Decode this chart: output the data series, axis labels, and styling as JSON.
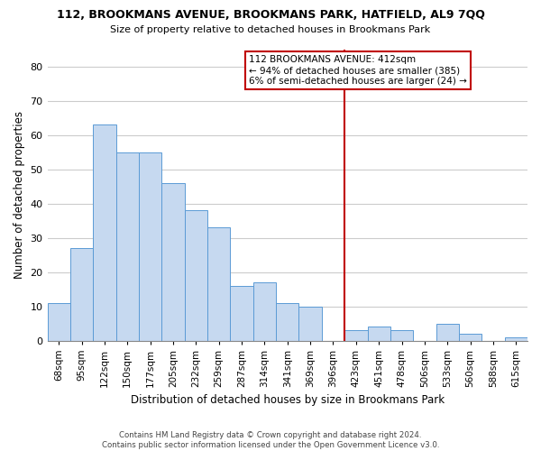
{
  "title": "112, BROOKMANS AVENUE, BROOKMANS PARK, HATFIELD, AL9 7QQ",
  "subtitle": "Size of property relative to detached houses in Brookmans Park",
  "xlabel": "Distribution of detached houses by size in Brookmans Park",
  "ylabel": "Number of detached properties",
  "footer_line1": "Contains HM Land Registry data © Crown copyright and database right 2024.",
  "footer_line2": "Contains public sector information licensed under the Open Government Licence v3.0.",
  "bar_labels": [
    "68sqm",
    "95sqm",
    "122sqm",
    "150sqm",
    "177sqm",
    "205sqm",
    "232sqm",
    "259sqm",
    "287sqm",
    "314sqm",
    "341sqm",
    "369sqm",
    "396sqm",
    "423sqm",
    "451sqm",
    "478sqm",
    "506sqm",
    "533sqm",
    "560sqm",
    "588sqm",
    "615sqm"
  ],
  "bar_values": [
    11,
    27,
    63,
    55,
    55,
    46,
    38,
    33,
    16,
    17,
    11,
    10,
    0,
    3,
    4,
    3,
    0,
    5,
    2,
    0,
    1
  ],
  "bar_color": "#c6d9f0",
  "bar_edge_color": "#5b9bd5",
  "vline_pos": 12.5,
  "vline_color": "#c00000",
  "ylim": [
    0,
    85
  ],
  "yticks": [
    0,
    10,
    20,
    30,
    40,
    50,
    60,
    70,
    80
  ],
  "annotation_title": "112 BROOKMANS AVENUE: 412sqm",
  "annotation_line2": "← 94% of detached houses are smaller (385)",
  "annotation_line3": "6% of semi-detached houses are larger (24) →",
  "annotation_box_color": "#ffffff",
  "annotation_box_edge": "#c00000",
  "background_color": "#ffffff",
  "grid_color": "#cccccc"
}
